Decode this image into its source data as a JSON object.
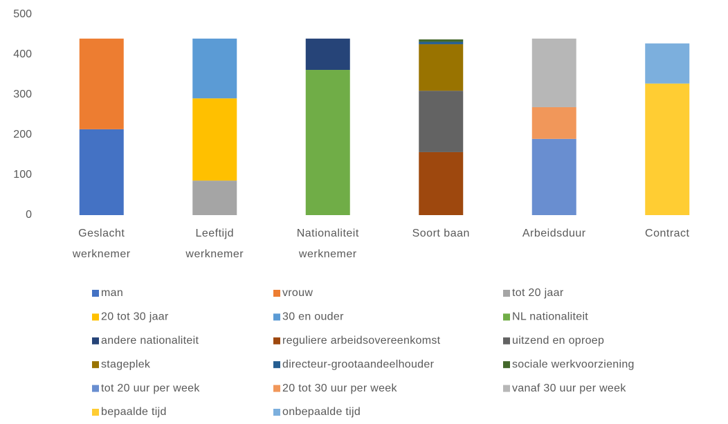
{
  "chart_data": {
    "type": "stacked_bar",
    "categories": [
      "Geslacht werknemer",
      "Leeftijd werknemer",
      "Nationaliteit werknemer",
      "Soort baan",
      "Arbeidsduur",
      "Contract"
    ],
    "ylim": [
      0,
      500
    ],
    "yticks": [
      0,
      100,
      200,
      300,
      400,
      500
    ],
    "grid": false,
    "series": [
      {
        "name": "man",
        "color": "#4472c4",
        "values": [
          214,
          null,
          null,
          null,
          null,
          null
        ]
      },
      {
        "name": "vrouw",
        "color": "#ed7d31",
        "values": [
          226,
          null,
          null,
          null,
          null,
          null
        ]
      },
      {
        "name": "tot 20 jaar",
        "color": "#a5a5a5",
        "values": [
          null,
          86,
          null,
          null,
          null,
          null
        ]
      },
      {
        "name": "20 tot 30 jaar",
        "color": "#ffc000",
        "values": [
          null,
          205,
          null,
          null,
          null,
          null
        ]
      },
      {
        "name": "30 en ouder",
        "color": "#5b9bd5",
        "values": [
          null,
          149,
          null,
          null,
          null,
          null
        ]
      },
      {
        "name": "NL nationaliteit",
        "color": "#70ad47",
        "values": [
          null,
          null,
          362,
          null,
          null,
          null
        ]
      },
      {
        "name": "andere nationaliteit",
        "color": "#264478",
        "values": [
          null,
          null,
          78,
          null,
          null,
          null
        ]
      },
      {
        "name": "reguliere arbeidsovereenkomst",
        "color": "#9e480e",
        "values": [
          null,
          null,
          null,
          157,
          null,
          null
        ]
      },
      {
        "name": "uitzend en oproep",
        "color": "#636363",
        "values": [
          null,
          null,
          null,
          153,
          null,
          null
        ]
      },
      {
        "name": "stageplek",
        "color": "#997300",
        "values": [
          null,
          null,
          null,
          116,
          null,
          null
        ]
      },
      {
        "name": "directeur-grootaandeelhouder",
        "color": "#255e91",
        "values": [
          null,
          null,
          null,
          6,
          null,
          null
        ]
      },
      {
        "name": "sociale werkvoorziening",
        "color": "#43682b",
        "values": [
          null,
          null,
          null,
          6,
          null,
          null
        ]
      },
      {
        "name": "tot 20 uur per week",
        "color": "#698ed0",
        "values": [
          null,
          null,
          null,
          null,
          190,
          null
        ]
      },
      {
        "name": "20 tot 30 uur per week",
        "color": "#f1975a",
        "values": [
          null,
          null,
          null,
          null,
          79,
          null
        ]
      },
      {
        "name": "vanaf 30 uur per week",
        "color": "#b7b7b7",
        "values": [
          null,
          null,
          null,
          null,
          171,
          null
        ]
      },
      {
        "name": "bepaalde tijd",
        "color": "#ffcd33",
        "values": [
          null,
          null,
          null,
          null,
          null,
          328
        ]
      },
      {
        "name": "onbepaalde tijd",
        "color": "#7cafdd",
        "values": [
          null,
          null,
          null,
          null,
          null,
          100
        ]
      }
    ]
  }
}
